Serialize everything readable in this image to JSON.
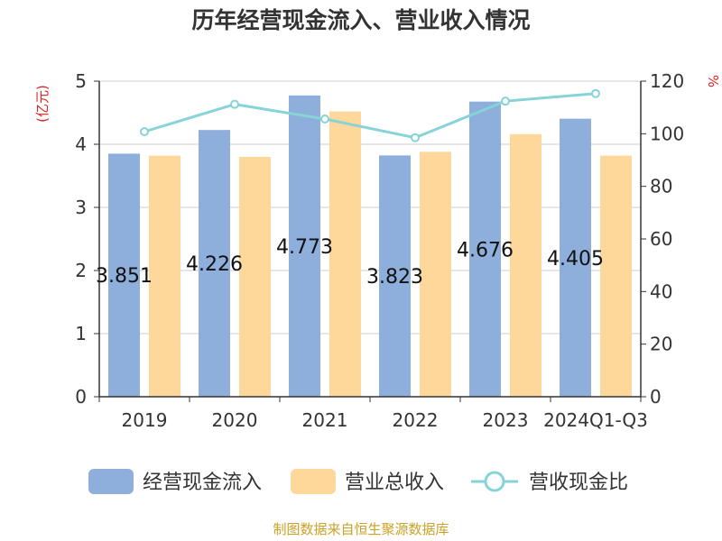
{
  "chart_data": {
    "type": "bar",
    "title": "历年经营现金流入、营业收入情况",
    "categories": [
      "2019",
      "2020",
      "2021",
      "2022",
      "2023",
      "2024Q1-Q3"
    ],
    "y_left": {
      "unit": "(亿元)",
      "range": [
        0,
        5
      ],
      "ticks": [
        "0",
        "1",
        "2",
        "3",
        "4",
        "5"
      ]
    },
    "y_right": {
      "unit": "%",
      "range": [
        0,
        120
      ],
      "ticks": [
        "0",
        "20",
        "40",
        "60",
        "80",
        "100",
        "120"
      ]
    },
    "series": [
      {
        "name": "经营现金流入",
        "kind": "bar",
        "axis": "left",
        "color": "#8eaedb",
        "values": [
          3.851,
          4.226,
          4.773,
          3.823,
          4.676,
          4.405
        ],
        "labels": [
          "3.851",
          "4.226",
          "4.773",
          "3.823",
          "4.676",
          "4.405"
        ]
      },
      {
        "name": "营业总收入",
        "kind": "bar",
        "axis": "left",
        "color": "#fdd89a",
        "values": [
          3.82,
          3.8,
          4.52,
          3.88,
          4.16,
          3.82
        ]
      },
      {
        "name": "营收现金比",
        "kind": "line",
        "axis": "right",
        "color": "#86d3d8",
        "values": [
          100.8,
          111.2,
          105.6,
          98.5,
          112.4,
          115.3
        ]
      }
    ],
    "grid": true,
    "legend_position": "bottom"
  },
  "footer": {
    "source": "制图数据来自恒生聚源数据库"
  }
}
